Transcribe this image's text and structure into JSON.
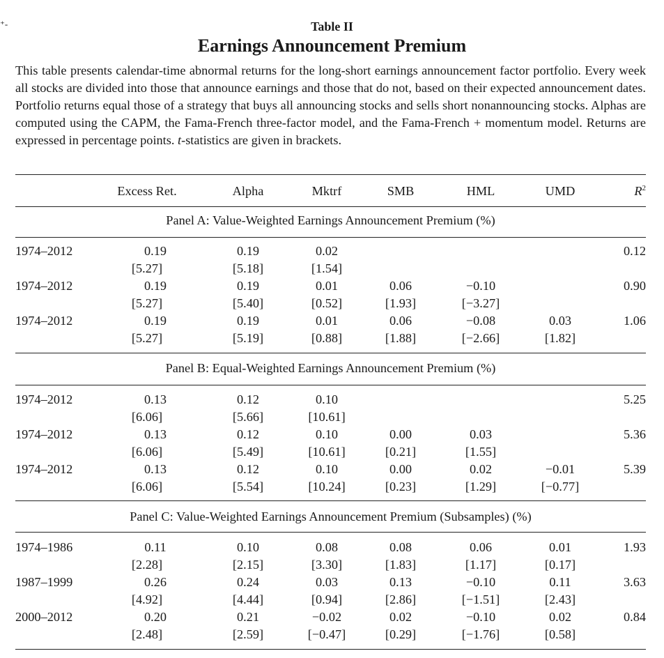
{
  "edge_mark": "⁺-",
  "caption": {
    "label": "Table II",
    "title": "Earnings Announcement Premium",
    "text_1": "This table presents calendar-time abnormal returns for the long-short earnings announcement factor portfolio. Every week all stocks are divided into those that announce earnings and those that do not, based on their expected announcement dates. Portfolio returns equal those of a strategy that buys all announcing stocks and sells short nonannouncing stocks. Alphas are computed using the CAPM, the Fama-French three-factor model, and the Fama-French + momentum model. Returns are expressed in percentage points. ",
    "t_symbol": "t",
    "text_2": "-statistics are given in brackets."
  },
  "header": {
    "excess": "Excess Ret.",
    "alpha": "Alpha",
    "mktrf": "Mktrf",
    "smb": "SMB",
    "hml": "HML",
    "umd": "UMD",
    "r2_base": "R",
    "r2_sup": "2"
  },
  "panels": [
    {
      "title": "Panel A: Value-Weighted Earnings Announcement Premium (%)",
      "rows": [
        {
          "period": "1974–2012",
          "values": [
            "0.19",
            "0.19",
            "0.02",
            "",
            "",
            ""
          ],
          "tstats": [
            "[5.27]",
            "[5.18]",
            "[1.54]",
            "",
            "",
            ""
          ],
          "r2": "0.12"
        },
        {
          "period": "1974–2012",
          "values": [
            "0.19",
            "0.19",
            "0.01",
            "0.06",
            "−0.10",
            ""
          ],
          "tstats": [
            "[5.27]",
            "[5.40]",
            "[0.52]",
            "[1.93]",
            "[−3.27]",
            ""
          ],
          "r2": "0.90"
        },
        {
          "period": "1974–2012",
          "values": [
            "0.19",
            "0.19",
            "0.01",
            "0.06",
            "−0.08",
            "0.03"
          ],
          "tstats": [
            "[5.27]",
            "[5.19]",
            "[0.88]",
            "[1.88]",
            "[−2.66]",
            "[1.82]"
          ],
          "r2": "1.06"
        }
      ]
    },
    {
      "title": "Panel B: Equal-Weighted Earnings Announcement Premium (%)",
      "rows": [
        {
          "period": "1974–2012",
          "values": [
            "0.13",
            "0.12",
            "0.10",
            "",
            "",
            ""
          ],
          "tstats": [
            "[6.06]",
            "[5.66]",
            "[10.61]",
            "",
            "",
            ""
          ],
          "r2": "5.25"
        },
        {
          "period": "1974–2012",
          "values": [
            "0.13",
            "0.12",
            "0.10",
            "0.00",
            "0.03",
            ""
          ],
          "tstats": [
            "[6.06]",
            "[5.49]",
            "[10.61]",
            "[0.21]",
            "[1.55]",
            ""
          ],
          "r2": "5.36"
        },
        {
          "period": "1974–2012",
          "values": [
            "0.13",
            "0.12",
            "0.10",
            "0.00",
            "0.02",
            "−0.01"
          ],
          "tstats": [
            "[6.06]",
            "[5.54]",
            "[10.24]",
            "[0.23]",
            "[1.29]",
            "[−0.77]"
          ],
          "r2": "5.39"
        }
      ]
    },
    {
      "title": "Panel C: Value-Weighted Earnings Announcement Premium (Subsamples) (%)",
      "rows": [
        {
          "period": "1974–1986",
          "values": [
            "0.11",
            "0.10",
            "0.08",
            "0.08",
            "0.06",
            "0.01"
          ],
          "tstats": [
            "[2.28]",
            "[2.15]",
            "[3.30]",
            "[1.83]",
            "[1.17]",
            "[0.17]"
          ],
          "r2": "1.93"
        },
        {
          "period": "1987–1999",
          "values": [
            "0.26",
            "0.24",
            "0.03",
            "0.13",
            "−0.10",
            "0.11"
          ],
          "tstats": [
            "[4.92]",
            "[4.44]",
            "[0.94]",
            "[2.86]",
            "[−1.51]",
            "[2.43]"
          ],
          "r2": "3.63"
        },
        {
          "period": "2000–2012",
          "values": [
            "0.20",
            "0.21",
            "−0.02",
            "0.02",
            "−0.10",
            "0.02"
          ],
          "tstats": [
            "[2.48]",
            "[2.59]",
            "[−0.47]",
            "[0.29]",
            "[−1.76]",
            "[0.58]"
          ],
          "r2": "0.84"
        }
      ]
    }
  ]
}
